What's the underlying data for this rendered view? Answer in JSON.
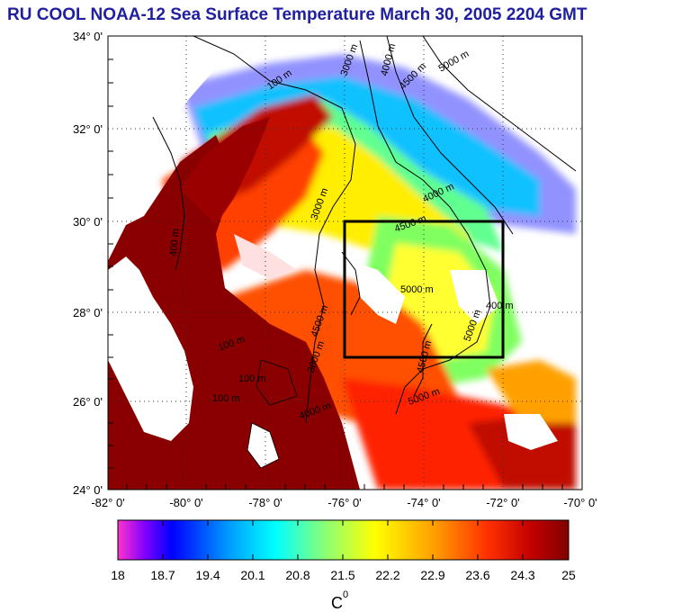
{
  "title": "RU COOL  NOAA-12 Sea Surface Temperature March 30, 2005 2204 GMT",
  "lat_labels": [
    "34° 0'",
    "32° 0'",
    "30° 0'",
    "28° 0'",
    "26° 0'",
    "24° 0'"
  ],
  "lon_labels": [
    "-82° 0'",
    "-80° 0'",
    "-78° 0'",
    "-76° 0'",
    "-74° 0'",
    "-72° 0'",
    "-70° 0'"
  ],
  "colorbar": {
    "ticks": [
      "18",
      "18.7",
      "19.4",
      "20.1",
      "20.8",
      "21.5",
      "22.2",
      "22.9",
      "23.6",
      "24.3",
      "25"
    ],
    "unit": "C",
    "unit_sup": "0",
    "colors": [
      "#ff33cc",
      "#8000ff",
      "#0000ff",
      "#00a0ff",
      "#00ffff",
      "#80ff80",
      "#ffff00",
      "#ffa000",
      "#ff3000",
      "#c00000",
      "#800000"
    ]
  },
  "contour_labels": [
    "100 m",
    "3000 m",
    "4000 m",
    "4500 m",
    "5000 m",
    "400 m",
    "3000 m",
    "4000 m",
    "4500 m",
    "5000 m",
    "4500 m",
    "5000 m",
    "4500 m",
    "5000 m",
    "100 m",
    "3000 m",
    "100 m",
    "4000 m",
    "100 m",
    "400 m"
  ],
  "region_box": {
    "lat_range": [
      27,
      30
    ],
    "lon_range": [
      -76,
      -72
    ]
  }
}
